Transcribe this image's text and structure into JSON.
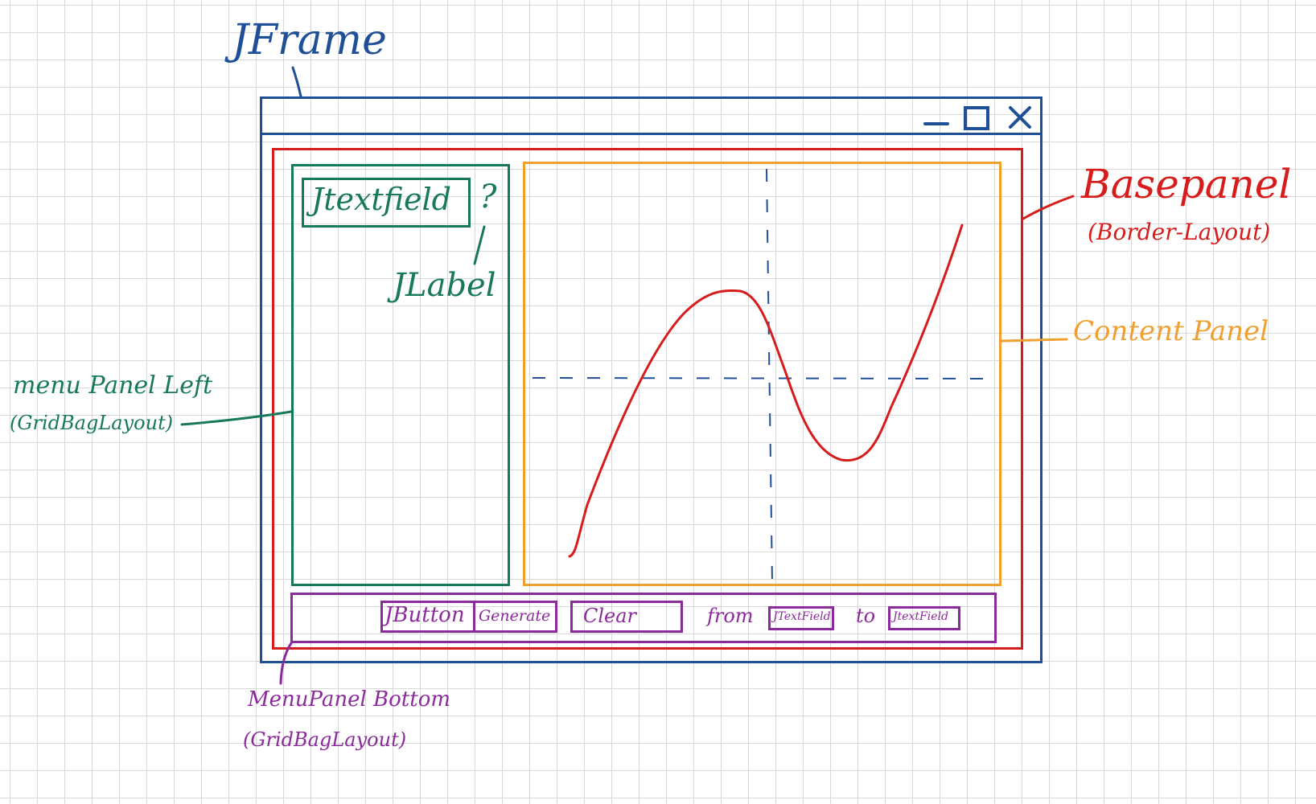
{
  "labels": {
    "jframe": "JFrame",
    "basepanel": "Basepanel",
    "basepanel_layout": "(Border-Layout)",
    "content_panel": "Content Panel",
    "menu_panel_left": "menu Panel Left",
    "menu_panel_left_layout": "(GridBagLayout)",
    "menu_panel_bottom": "MenuPanel Bottom",
    "menu_panel_bottom_layout": "(GridBagLayout)",
    "jtextfield": "Jtextfield",
    "question_mark": "?",
    "jlabel": "JLabel"
  },
  "bottom_panel": {
    "jbutton": "JButton",
    "generate": "Generate",
    "clear": "Clear",
    "from": "from",
    "from_field": "JTextField",
    "to": "to",
    "to_field": "JtextField"
  },
  "window_controls": {
    "minimize": "minimize-icon",
    "maximize": "maximize-icon",
    "close": "close-icon"
  },
  "colors": {
    "jframe": "#1f4f96",
    "basepanel": "#d71c1c",
    "menu_panel_left": "#18795a",
    "content_panel": "#f0a030",
    "menu_panel_bottom": "#8b2a9b",
    "curve": "#d71c1c",
    "axes": "#1f4f96"
  }
}
